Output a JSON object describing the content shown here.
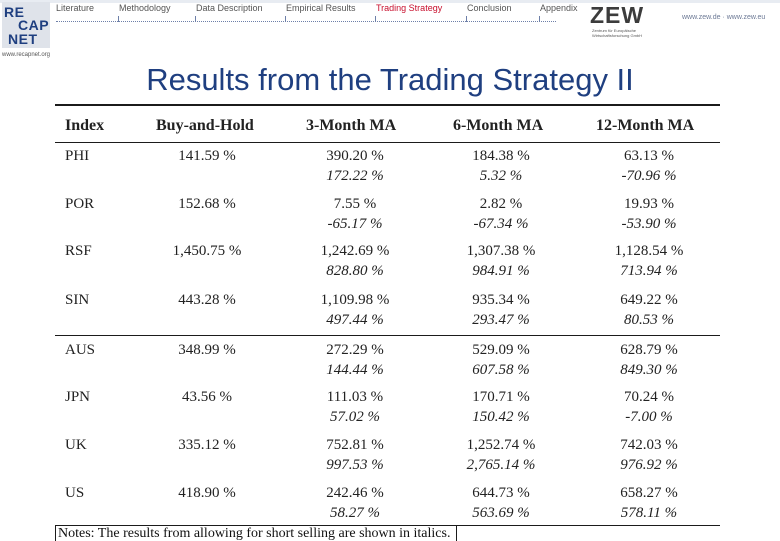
{
  "brand": {
    "logo_text": [
      "RE",
      "CAP",
      "NET"
    ],
    "logo_url": "www.recapnet.org"
  },
  "nav": {
    "items": [
      "Literature",
      "Methodology",
      "Data Description",
      "Empirical Results",
      "Trading Strategy",
      "Conclusion",
      "Appendix"
    ],
    "active_index": 4
  },
  "zew": {
    "mark": "ZEW",
    "subtitle": "Zentrum für Europäische Wirtschaftsforschung GmbH",
    "url": "www.zew.de · www.zew.eu"
  },
  "slide": {
    "title": "Results from the Trading Strategy II"
  },
  "table": {
    "headers": [
      "Index",
      "Buy-and-Hold",
      "3-Month MA",
      "6-Month MA",
      "12-Month MA"
    ],
    "rows": [
      {
        "index": "PHI",
        "bh": "141.59 %",
        "m3": "390.20 %",
        "m3s": "172.22 %",
        "m6": "184.38 %",
        "m6s": "5.32 %",
        "m12": "63.13 %",
        "m12s": "-70.96 %"
      },
      {
        "index": "POR",
        "bh": "152.68 %",
        "m3": "7.55 %",
        "m3s": "-65.17 %",
        "m6": "2.82 %",
        "m6s": "-67.34 %",
        "m12": "19.93 %",
        "m12s": "-53.90 %"
      },
      {
        "index": "RSF",
        "bh": "1,450.75 %",
        "m3": "1,242.69 %",
        "m3s": "828.80 %",
        "m6": "1,307.38 %",
        "m6s": "984.91 %",
        "m12": "1,128.54 %",
        "m12s": "713.94 %"
      },
      {
        "index": "SIN",
        "bh": "443.28 %",
        "m3": "1,109.98 %",
        "m3s": "497.44 %",
        "m6": "935.34 %",
        "m6s": "293.47 %",
        "m12": "649.22 %",
        "m12s": "80.53 %"
      },
      {
        "index": "AUS",
        "bh": "348.99 %",
        "m3": "272.29 %",
        "m3s": "144.44 %",
        "m6": "529.09 %",
        "m6s": "607.58 %",
        "m12": "628.79 %",
        "m12s": "849.30 %"
      },
      {
        "index": "JPN",
        "bh": "43.56 %",
        "m3": "111.03 %",
        "m3s": "57.02 %",
        "m6": "170.71 %",
        "m6s": "150.42 %",
        "m12": "70.24 %",
        "m12s": "-7.00 %"
      },
      {
        "index": "UK",
        "bh": "335.12 %",
        "m3": "752.81 %",
        "m3s": "997.53 %",
        "m6": "1,252.74 %",
        "m6s": "2,765.14 %",
        "m12": "742.03 %",
        "m12s": "976.92 %"
      },
      {
        "index": "US",
        "bh": "418.90 %",
        "m3": "242.46 %",
        "m3s": "58.27 %",
        "m6": "644.73 %",
        "m6s": "563.69 %",
        "m12": "658.27 %",
        "m12s": "578.11 %"
      }
    ]
  },
  "notes": "Notes: The results from allowing for short selling are shown in italics."
}
